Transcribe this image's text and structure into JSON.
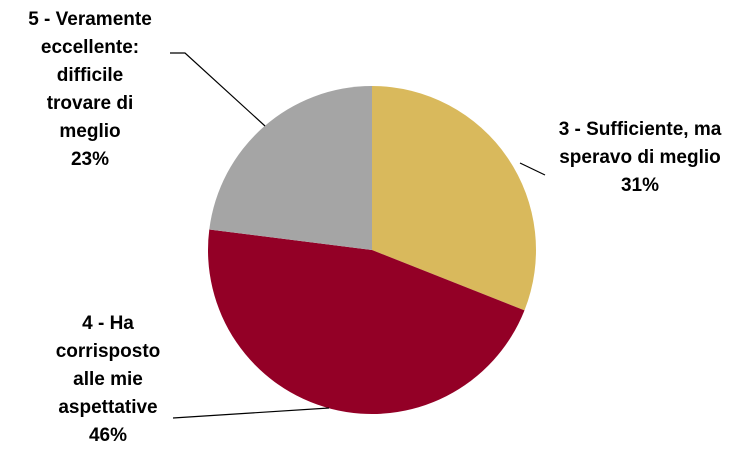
{
  "chart_data": {
    "type": "pie",
    "slices": [
      {
        "label_lines": [
          "3 - Sufficiente, ma",
          "speravo di meglio"
        ],
        "pct_text": "31%",
        "value": 31,
        "color": "#D9B95C"
      },
      {
        "label_lines": [
          "4 - Ha",
          "corrisposto",
          "alle mie",
          "aspettative"
        ],
        "pct_text": "46%",
        "value": 46,
        "color": "#930026"
      },
      {
        "label_lines": [
          "5 - Veramente",
          "eccellente:",
          "difficile",
          "trovare di",
          "meglio"
        ],
        "pct_text": "23%",
        "value": 23,
        "color": "#A5A5A5"
      }
    ]
  }
}
